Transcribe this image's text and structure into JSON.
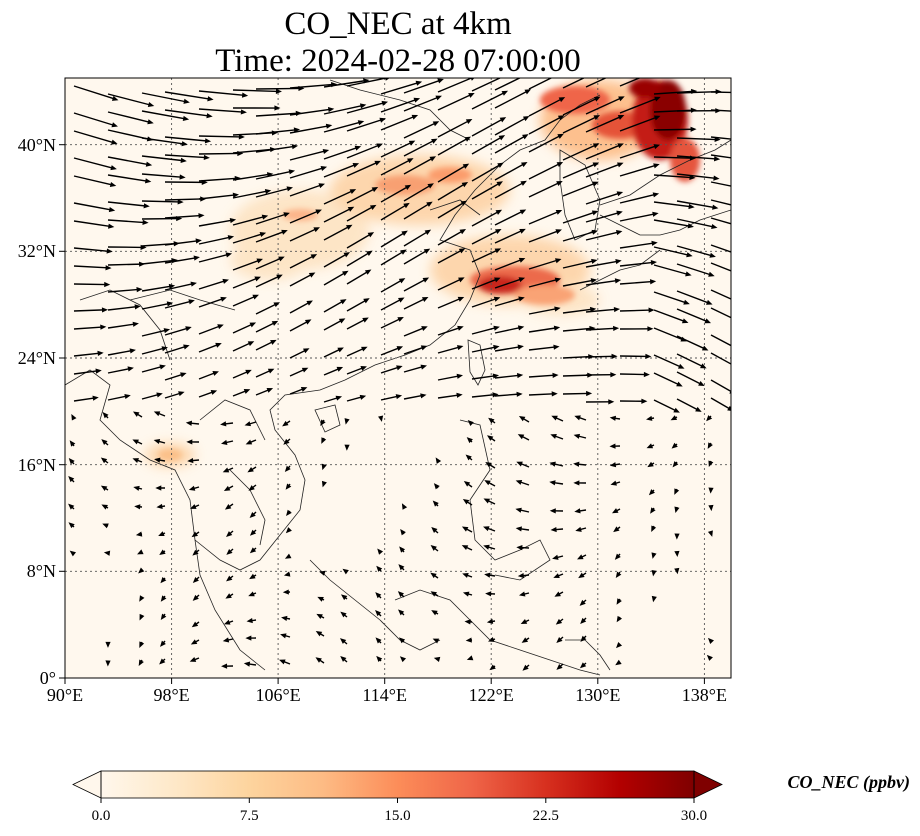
{
  "figure": {
    "title_line1": "CO_NEC at 4km",
    "title_line2": "Time: 2024-02-28 07:00:00"
  },
  "map": {
    "type": "filled-contour map with wind vectors",
    "lon_range": [
      90,
      140
    ],
    "lat_range": [
      0,
      45
    ],
    "gridlines": true,
    "coastlines": true,
    "x_ticks": [
      "90°E",
      "98°E",
      "106°E",
      "114°E",
      "122°E",
      "130°E",
      "138°E"
    ],
    "y_ticks": [
      "0°",
      "8°N",
      "16°N",
      "24°N",
      "32°N",
      "40°N"
    ],
    "high_concentration_areas": [
      "Yangtze River Delta / East China Sea (~30°N, 122°E)",
      "Northeast China / Korea (38–45°N, 125–137°E)",
      "North China (~36°N, 114–120°E)"
    ],
    "wind_pattern": "strong westerlies north of ~20°N, weak easterly/northeasterly flow in the south"
  },
  "colorbar": {
    "label": "CO_NEC (ppbv)",
    "min": 0,
    "max": 30,
    "ticks": [
      "0.0",
      "7.5",
      "15.0",
      "22.5",
      "30.0"
    ],
    "extend": "both",
    "colormap": "OrRd",
    "colors": [
      "#fff7ec",
      "#fee8c8",
      "#fdd49e",
      "#fdbb84",
      "#fc8d59",
      "#ef6548",
      "#d7301f",
      "#b30000",
      "#7f0000"
    ]
  }
}
